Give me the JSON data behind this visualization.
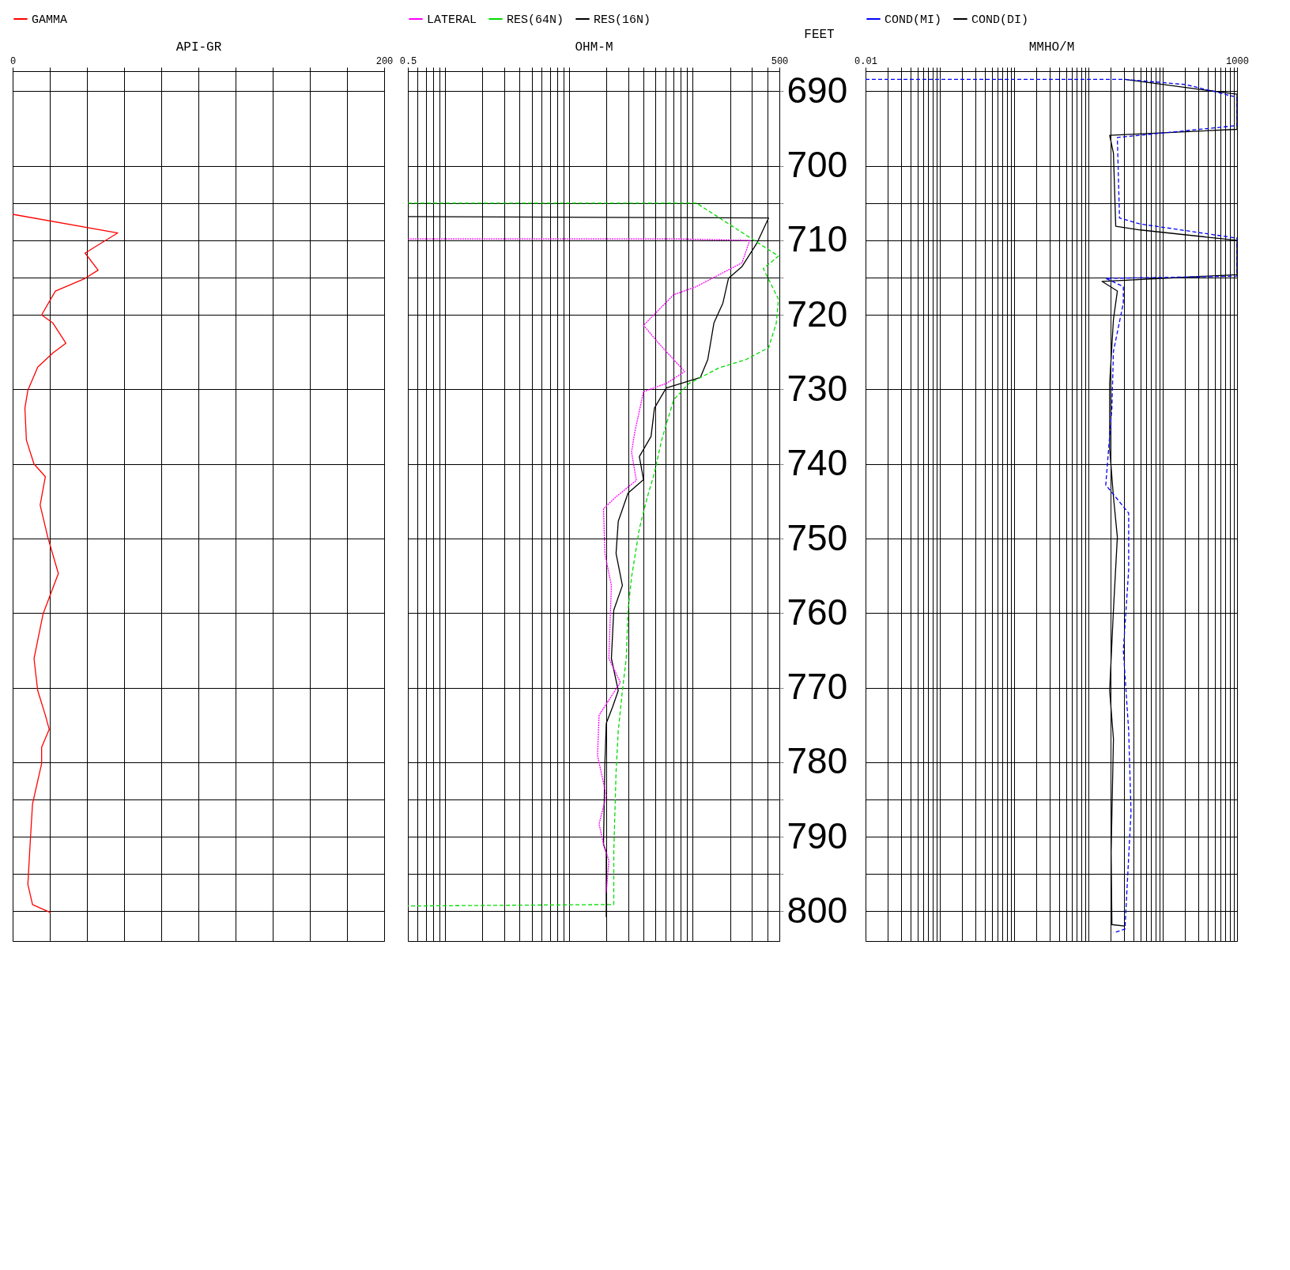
{
  "chart_data": [
    {
      "type": "line",
      "xlabel": "API-GR",
      "xlim": [
        0,
        200
      ],
      "xticks": [
        0,
        {
          "value": 20,
          "label": null
        },
        {
          "value": 40,
          "label": null
        },
        {
          "value": 60,
          "label": null
        },
        {
          "value": 80,
          "label": null
        },
        {
          "value": 100,
          "label": null
        },
        {
          "value": 120,
          "label": null
        },
        {
          "value": 140,
          "label": null
        },
        {
          "value": 160,
          "label": null
        },
        {
          "value": 180,
          "label": null
        },
        200
      ],
      "ylim": [
        804,
        687.3
      ],
      "yticks": [
        690,
        700,
        {
          "value": 705,
          "label": null
        },
        710,
        {
          "value": 715,
          "label": null
        },
        720,
        730,
        740,
        750,
        760,
        770,
        780,
        {
          "value": 785,
          "label": null
        },
        790,
        {
          "value": 795,
          "label": null
        },
        800
      ],
      "grid": true,
      "tick_labels": "x",
      "legend": "top",
      "series": [
        {
          "name": "GAMMA",
          "color": "#ff0000",
          "line_style": "solid",
          "x": [
            0,
            56.6,
            39,
            46,
            39,
            23,
            15.6,
            21.7,
            28.7,
            21.7,
            13.5,
            8.2,
            6.6,
            7.4,
            11.5,
            17.6,
            14.8,
            18.9,
            24.6,
            16.4,
            11.5,
            13.5,
            17.6,
            19.7,
            15.6,
            15.6,
            10.7,
            9.4,
            8.2,
            10.7,
            20.5
          ],
          "values": [
            706.5,
            709,
            711.7,
            714,
            715.1,
            716.8,
            720,
            721.1,
            723.8,
            725.1,
            727,
            730.1,
            732.5,
            736.8,
            740,
            741.7,
            745.5,
            749.8,
            754.7,
            760.1,
            766.1,
            770.4,
            773.7,
            775.6,
            778,
            780.2,
            785.6,
            791,
            796.4,
            799.1,
            800.2
          ]
        }
      ]
    },
    {
      "type": "line",
      "xlabel": "OHM-M",
      "ylabel": "FEET",
      "log": "x",
      "xlim": [
        0.5,
        500
      ],
      "xticks": [
        0.5,
        {
          "value": 0.6,
          "label": null
        },
        {
          "value": 0.7,
          "label": null
        },
        {
          "value": 0.8,
          "label": null
        },
        {
          "value": 0.9,
          "label": null
        },
        {
          "value": 1,
          "label": null
        },
        {
          "value": 2,
          "label": null
        },
        {
          "value": 3,
          "label": null
        },
        {
          "value": 4,
          "label": null
        },
        {
          "value": 5,
          "label": null
        },
        {
          "value": 6,
          "label": null
        },
        {
          "value": 7,
          "label": null
        },
        {
          "value": 8,
          "label": null
        },
        {
          "value": 9,
          "label": null
        },
        {
          "value": 10,
          "label": null
        },
        {
          "value": 20,
          "label": null
        },
        {
          "value": 30,
          "label": null
        },
        {
          "value": 40,
          "label": null
        },
        {
          "value": 50,
          "label": null
        },
        {
          "value": 60,
          "label": null
        },
        {
          "value": 70,
          "label": null
        },
        {
          "value": 80,
          "label": null
        },
        {
          "value": 90,
          "label": null
        },
        {
          "value": 100,
          "label": null
        },
        {
          "value": 200,
          "label": null
        },
        {
          "value": 300,
          "label": null
        },
        {
          "value": 400,
          "label": null
        },
        500
      ],
      "ylim": [
        804,
        687.3
      ],
      "yticks": [
        690,
        700,
        {
          "value": 705,
          "label": null
        },
        710,
        {
          "value": 715,
          "label": null
        },
        720,
        730,
        740,
        750,
        760,
        770,
        780,
        {
          "value": 785,
          "label": null
        },
        790,
        {
          "value": 795,
          "label": null
        },
        800
      ],
      "grid": true,
      "legend": "top",
      "series": [
        {
          "name": "LATERAL",
          "color": "#ff00ff",
          "line_style": "dotted",
          "x": [
            0.5,
            70,
            288,
            250,
            107,
            70,
            40,
            53,
            86,
            61,
            40,
            34,
            32,
            35,
            24,
            19,
            19.5,
            22,
            21,
            26,
            17.5,
            17,
            20,
            17.5,
            19,
            21,
            20
          ],
          "values": [
            709.8,
            709.8,
            710,
            713,
            716.2,
            717.3,
            721.4,
            723.8,
            727.6,
            729.2,
            730.3,
            735.7,
            738.4,
            742.2,
            744.4,
            746,
            752,
            756.3,
            766.1,
            769.3,
            773.7,
            779.1,
            784.5,
            788.3,
            791,
            793.2,
            797.5
          ]
        },
        {
          "name": "RES(64N)",
          "color": "#00dd00",
          "line_style": "dashed",
          "x": [
            0.5,
            107,
            492,
            371,
            492,
            472,
            409,
            268,
            163,
            93,
            70,
            56,
            49,
            43,
            37,
            32,
            30,
            29,
            27,
            25,
            24,
            23,
            23,
            0.5
          ],
          "values": [
            705,
            705,
            712.1,
            713.8,
            717.9,
            721.1,
            724.4,
            726,
            727.1,
            729.2,
            731.4,
            736.8,
            741.2,
            744.4,
            748.7,
            755.2,
            759.6,
            766.1,
            770.4,
            775.8,
            781.3,
            792.1,
            799.1,
            799.3
          ]
        },
        {
          "name": "RES(16N)",
          "color": "#000000",
          "line_style": "solid",
          "x": [
            0.5,
            409,
            331,
            250,
            194,
            175,
            148,
            132,
            115,
            61,
            49,
            46,
            37,
            40,
            30,
            25,
            24,
            27,
            23,
            22,
            25,
            22.5,
            20,
            19.5,
            19,
            20,
            20
          ],
          "values": [
            706.8,
            707,
            710.3,
            713.5,
            715.1,
            718.4,
            721.1,
            726,
            728.4,
            729.8,
            732.5,
            736.3,
            739,
            742.1,
            743.9,
            747.7,
            752,
            756.3,
            759.6,
            766.1,
            770.4,
            772.6,
            774.8,
            780.2,
            791,
            792.1,
            800.8
          ]
        }
      ]
    },
    {
      "type": "line",
      "xlabel": "MMHO/M",
      "log": "x",
      "xlim": [
        0.01,
        1000
      ],
      "xticks": [
        0.01,
        {
          "value": 0.02,
          "label": null
        },
        {
          "value": 0.03,
          "label": null
        },
        {
          "value": 0.04,
          "label": null
        },
        {
          "value": 0.05,
          "label": null
        },
        {
          "value": 0.06,
          "label": null
        },
        {
          "value": 0.07,
          "label": null
        },
        {
          "value": 0.08,
          "label": null
        },
        {
          "value": 0.09,
          "label": null
        },
        {
          "value": 0.1,
          "label": null
        },
        {
          "value": 0.2,
          "label": null
        },
        {
          "value": 0.3,
          "label": null
        },
        {
          "value": 0.4,
          "label": null
        },
        {
          "value": 0.5,
          "label": null
        },
        {
          "value": 0.6,
          "label": null
        },
        {
          "value": 0.7,
          "label": null
        },
        {
          "value": 0.8,
          "label": null
        },
        {
          "value": 0.9,
          "label": null
        },
        {
          "value": 1,
          "label": null
        },
        {
          "value": 2,
          "label": null
        },
        {
          "value": 3,
          "label": null
        },
        {
          "value": 4,
          "label": null
        },
        {
          "value": 5,
          "label": null
        },
        {
          "value": 6,
          "label": null
        },
        {
          "value": 7,
          "label": null
        },
        {
          "value": 8,
          "label": null
        },
        {
          "value": 9,
          "label": null
        },
        {
          "value": 10,
          "label": null
        },
        {
          "value": 20,
          "label": null
        },
        {
          "value": 30,
          "label": null
        },
        {
          "value": 40,
          "label": null
        },
        {
          "value": 50,
          "label": null
        },
        {
          "value": 60,
          "label": null
        },
        {
          "value": 70,
          "label": null
        },
        {
          "value": 80,
          "label": null
        },
        {
          "value": 90,
          "label": null
        },
        {
          "value": 100,
          "label": null
        },
        {
          "value": 200,
          "label": null
        },
        {
          "value": 300,
          "label": null
        },
        {
          "value": 400,
          "label": null
        },
        {
          "value": 500,
          "label": null
        },
        {
          "value": 600,
          "label": null
        },
        {
          "value": 700,
          "label": null
        },
        {
          "value": 800,
          "label": null
        },
        {
          "value": 900,
          "label": null
        },
        1000
      ],
      "ylim": [
        804,
        687.3
      ],
      "yticks": [
        690,
        700,
        {
          "value": 705,
          "label": null
        },
        710,
        {
          "value": 715,
          "label": null
        },
        720,
        730,
        740,
        750,
        760,
        770,
        780,
        {
          "value": 785,
          "label": null
        },
        790,
        {
          "value": 795,
          "label": null
        },
        800
      ],
      "grid": true,
      "tick_labels": "x",
      "legend": "top",
      "series": [
        {
          "name": "COND(MI)",
          "color": "#0000ff",
          "line_style": "dashed",
          "x": [
            0.01,
            31,
            205,
            1000,
            1000,
            24.5,
            26.2,
            49.7,
            1000,
            1000,
            17.1,
            29.5,
            29.5,
            21.7,
            20.7,
            17.1,
            34.8,
            34.8,
            29.5,
            34.8,
            37.4,
            31,
            21.7
          ],
          "values": [
            688.4,
            688.4,
            689.1,
            690.8,
            694.6,
            696.2,
            707,
            707.8,
            709.7,
            714.8,
            715.1,
            716.2,
            718.4,
            724.9,
            732.5,
            742.8,
            746.6,
            754.2,
            765,
            775.8,
            786.7,
            802.4,
            802.9
          ]
        },
        {
          "name": "COND(DI)",
          "color": "#000000",
          "line_style": "solid",
          "x": [
            31,
            1000,
            1000,
            19.3,
            21.7,
            23.3,
            49.7,
            1000,
            1000,
            15.2,
            24.5,
            21.7,
            19.3,
            19.3,
            21.7,
            24.5,
            21.7,
            19.3,
            21.7,
            20.2,
            20.7,
            31
          ],
          "values": [
            688.4,
            690.4,
            695.1,
            695.9,
            698.3,
            708.1,
            708.6,
            710,
            714.6,
            715.5,
            716.8,
            720.6,
            729.2,
            737.9,
            744.4,
            749.8,
            759.6,
            770.4,
            776.9,
            792.1,
            801.8,
            802
          ]
        }
      ]
    }
  ]
}
